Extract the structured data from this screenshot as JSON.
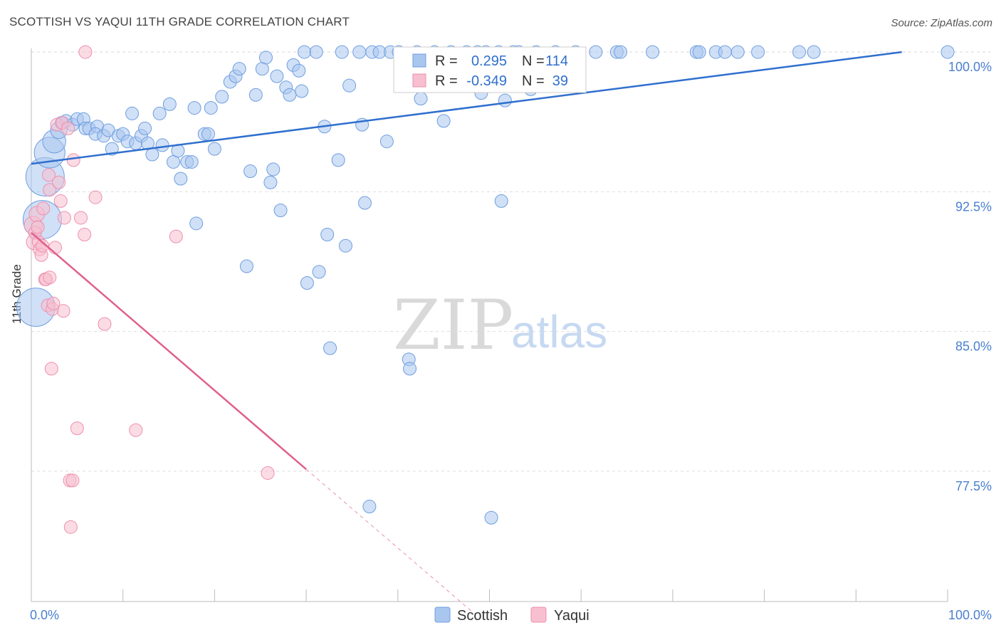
{
  "header": {
    "title": "SCOTTISH VS YAQUI 11TH GRADE CORRELATION CHART",
    "source": "Source: ZipAtlas.com"
  },
  "watermark": {
    "zip": "ZIP",
    "atlas": "atlas"
  },
  "colors": {
    "scottish_fill": "#a9c6ee",
    "scottish_stroke": "#6f9ee0",
    "scottish_line": "#2f6fce",
    "yaqui_fill": "#f7bfd0",
    "yaqui_stroke": "#ee8fae",
    "yaqui_line": "#e0608c",
    "grid": "#dddddd",
    "tick": "#4a7fd0"
  },
  "stats_box": {
    "rows": [
      {
        "r_label": "R =",
        "r_value": "0.295",
        "n_label": "N =",
        "n_value": "114",
        "series": "scottish"
      },
      {
        "r_label": "R =",
        "r_value": "-0.349",
        "n_label": "N =",
        "n_value": "39",
        "series": "yaqui"
      }
    ]
  },
  "chart_data": {
    "type": "scatter",
    "title": "SCOTTISH VS YAQUI 11TH GRADE CORRELATION CHART",
    "xlabel": "",
    "ylabel": "11th Grade",
    "xlim": [
      0,
      100
    ],
    "ylim": [
      70.5,
      100.5
    ],
    "x_tick_labels": [
      {
        "value": 0,
        "label": "0.0%"
      },
      {
        "value": 100,
        "label": "100.0%"
      }
    ],
    "y_ticks": [
      {
        "value": 100,
        "label": "100.0%"
      },
      {
        "value": 92.5,
        "label": "92.5%"
      },
      {
        "value": 85,
        "label": "85.0%"
      },
      {
        "value": 77.5,
        "label": "77.5%"
      }
    ],
    "legend": [
      "Scottish",
      "Yaqui"
    ],
    "series": [
      {
        "name": "Scottish",
        "key": "scottish",
        "trendline": {
          "x": [
            0,
            95
          ],
          "y": [
            94.0,
            100.0
          ]
        },
        "points": [
          [
            1.2,
            91.0,
            3
          ],
          [
            0.5,
            86.3,
            3
          ],
          [
            1.5,
            93.3,
            3
          ],
          [
            2.0,
            94.6,
            2.4
          ],
          [
            2.5,
            95.2,
            1.8
          ],
          [
            3.0,
            95.8,
            1.3
          ],
          [
            3.3,
            96.2,
            1
          ],
          [
            3.8,
            96.3,
            1
          ],
          [
            4.5,
            96.1,
            1
          ],
          [
            5.0,
            96.4,
            1
          ],
          [
            5.7,
            96.4,
            1
          ],
          [
            5.9,
            95.9,
            1
          ],
          [
            6.3,
            95.9,
            1
          ],
          [
            7.2,
            96.0,
            1
          ],
          [
            7.0,
            95.6,
            1
          ],
          [
            7.9,
            95.5,
            1
          ],
          [
            8.4,
            95.8,
            1
          ],
          [
            8.8,
            94.8,
            1
          ],
          [
            9.5,
            95.5,
            1
          ],
          [
            10.0,
            95.6,
            1
          ],
          [
            10.5,
            95.2,
            1
          ],
          [
            11.0,
            96.7,
            1
          ],
          [
            11.4,
            95.1,
            1
          ],
          [
            12.0,
            95.5,
            1
          ],
          [
            12.4,
            95.9,
            1
          ],
          [
            12.7,
            95.1,
            1
          ],
          [
            13.2,
            94.5,
            1
          ],
          [
            14.3,
            95.0,
            1
          ],
          [
            14.0,
            96.7,
            1
          ],
          [
            15.1,
            97.2,
            1
          ],
          [
            15.5,
            94.1,
            1
          ],
          [
            16.0,
            94.7,
            1
          ],
          [
            16.3,
            93.2,
            1
          ],
          [
            17.0,
            94.1,
            1
          ],
          [
            17.5,
            94.1,
            1
          ],
          [
            17.8,
            97.0,
            1
          ],
          [
            18.0,
            90.8,
            1
          ],
          [
            18.9,
            95.6,
            1
          ],
          [
            19.3,
            95.6,
            1
          ],
          [
            19.6,
            97.0,
            1
          ],
          [
            20.0,
            94.8,
            1
          ],
          [
            20.8,
            97.6,
            1
          ],
          [
            21.7,
            98.4,
            1
          ],
          [
            22.3,
            98.7,
            1
          ],
          [
            22.7,
            99.1,
            1
          ],
          [
            23.5,
            88.5,
            1
          ],
          [
            23.9,
            93.6,
            1
          ],
          [
            24.5,
            97.7,
            1
          ],
          [
            25.2,
            99.1,
            1
          ],
          [
            25.6,
            99.7,
            1
          ],
          [
            26.1,
            93.0,
            1
          ],
          [
            26.4,
            93.7,
            1
          ],
          [
            26.8,
            98.7,
            1
          ],
          [
            27.2,
            91.5,
            1
          ],
          [
            27.8,
            98.1,
            1
          ],
          [
            28.2,
            97.7,
            1
          ],
          [
            28.6,
            99.3,
            1
          ],
          [
            29.2,
            99.0,
            1
          ],
          [
            29.5,
            97.9,
            1
          ],
          [
            29.8,
            100.0,
            1
          ],
          [
            30.1,
            87.6,
            1
          ],
          [
            31.1,
            100.0,
            1
          ],
          [
            31.4,
            88.2,
            1
          ],
          [
            32.0,
            96.0,
            1
          ],
          [
            32.3,
            90.2,
            1
          ],
          [
            32.6,
            84.1,
            1
          ],
          [
            33.5,
            94.2,
            1
          ],
          [
            33.9,
            100.0,
            1
          ],
          [
            34.3,
            89.6,
            1
          ],
          [
            34.7,
            98.2,
            1
          ],
          [
            35.8,
            100.0,
            1
          ],
          [
            36.1,
            96.1,
            1
          ],
          [
            36.4,
            91.9,
            1
          ],
          [
            36.9,
            75.6,
            1
          ],
          [
            37.2,
            100.0,
            1
          ],
          [
            38.0,
            100.0,
            1
          ],
          [
            38.8,
            95.2,
            1
          ],
          [
            39.2,
            100.0,
            1
          ],
          [
            40.1,
            100.0,
            1
          ],
          [
            41.2,
            83.5,
            1
          ],
          [
            41.3,
            83.0,
            1
          ],
          [
            42.1,
            100.0,
            1
          ],
          [
            42.5,
            97.5,
            1
          ],
          [
            44.0,
            100.0,
            1
          ],
          [
            45.0,
            96.3,
            1
          ],
          [
            45.8,
            100.0,
            1
          ],
          [
            47.5,
            100.0,
            1
          ],
          [
            48.7,
            100.0,
            1
          ],
          [
            49.1,
            97.8,
            1
          ],
          [
            49.6,
            100.0,
            1
          ],
          [
            50.2,
            75.0,
            1
          ],
          [
            51.0,
            100.0,
            1
          ],
          [
            51.3,
            92.0,
            1
          ],
          [
            51.7,
            97.4,
            1
          ],
          [
            52.6,
            100.0,
            1
          ],
          [
            53.2,
            100.0,
            1
          ],
          [
            54.5,
            98.0,
            1
          ],
          [
            55.1,
            100.0,
            1
          ],
          [
            57.2,
            100.0,
            1
          ],
          [
            59.4,
            100.0,
            1
          ],
          [
            61.6,
            100.0,
            1
          ],
          [
            63.9,
            100.0,
            1
          ],
          [
            64.3,
            100.0,
            1
          ],
          [
            67.8,
            100.0,
            1
          ],
          [
            72.6,
            100.0,
            1
          ],
          [
            72.9,
            100.0,
            1
          ],
          [
            74.7,
            100.0,
            1
          ],
          [
            75.7,
            100.0,
            1
          ],
          [
            77.1,
            100.0,
            1
          ],
          [
            79.3,
            100.0,
            1
          ],
          [
            83.8,
            100.0,
            1
          ],
          [
            85.4,
            100.0,
            1
          ],
          [
            100.0,
            100.0,
            1
          ]
        ]
      },
      {
        "name": "Yaqui",
        "key": "yaqui",
        "trendline": {
          "x": [
            0,
            30
          ],
          "y": [
            90.3,
            77.6
          ],
          "dashed_to": {
            "x": 48,
            "y": 70.0
          }
        },
        "points": [
          [
            0.2,
            90.7,
            1.4
          ],
          [
            0.3,
            89.8,
            1.2
          ],
          [
            0.4,
            90.3,
            1
          ],
          [
            0.6,
            91.3,
            1.2
          ],
          [
            0.7,
            90.6,
            1
          ],
          [
            0.8,
            89.8,
            1
          ],
          [
            0.9,
            89.4,
            1
          ],
          [
            1.1,
            89.1,
            1
          ],
          [
            1.2,
            89.6,
            1
          ],
          [
            1.3,
            91.6,
            1
          ],
          [
            1.5,
            87.8,
            1
          ],
          [
            1.6,
            87.8,
            1
          ],
          [
            1.8,
            86.4,
            1
          ],
          [
            1.9,
            93.4,
            1
          ],
          [
            2.0,
            92.6,
            1
          ],
          [
            2.0,
            87.9,
            1
          ],
          [
            2.2,
            83.0,
            1
          ],
          [
            2.3,
            86.2,
            1
          ],
          [
            2.4,
            86.5,
            1
          ],
          [
            2.6,
            89.5,
            1
          ],
          [
            2.8,
            96.1,
            1
          ],
          [
            3.0,
            93.0,
            1
          ],
          [
            3.2,
            92.0,
            1
          ],
          [
            3.4,
            96.2,
            1
          ],
          [
            3.5,
            86.1,
            1
          ],
          [
            3.6,
            91.1,
            1
          ],
          [
            4.0,
            95.9,
            1
          ],
          [
            4.2,
            77.0,
            1
          ],
          [
            4.3,
            74.5,
            1
          ],
          [
            4.5,
            77.0,
            1
          ],
          [
            4.6,
            94.2,
            1
          ],
          [
            5.0,
            79.8,
            1
          ],
          [
            5.4,
            91.1,
            1
          ],
          [
            5.8,
            90.2,
            1
          ],
          [
            5.9,
            100.0,
            1
          ],
          [
            7.0,
            92.2,
            1
          ],
          [
            8.0,
            85.4,
            1
          ],
          [
            11.4,
            79.7,
            1
          ],
          [
            15.8,
            90.1,
            1
          ],
          [
            25.8,
            77.4,
            1
          ]
        ]
      }
    ]
  },
  "bottom_legend": [
    {
      "label": "Scottish",
      "series": "scottish"
    },
    {
      "label": "Yaqui",
      "series": "yaqui"
    }
  ]
}
